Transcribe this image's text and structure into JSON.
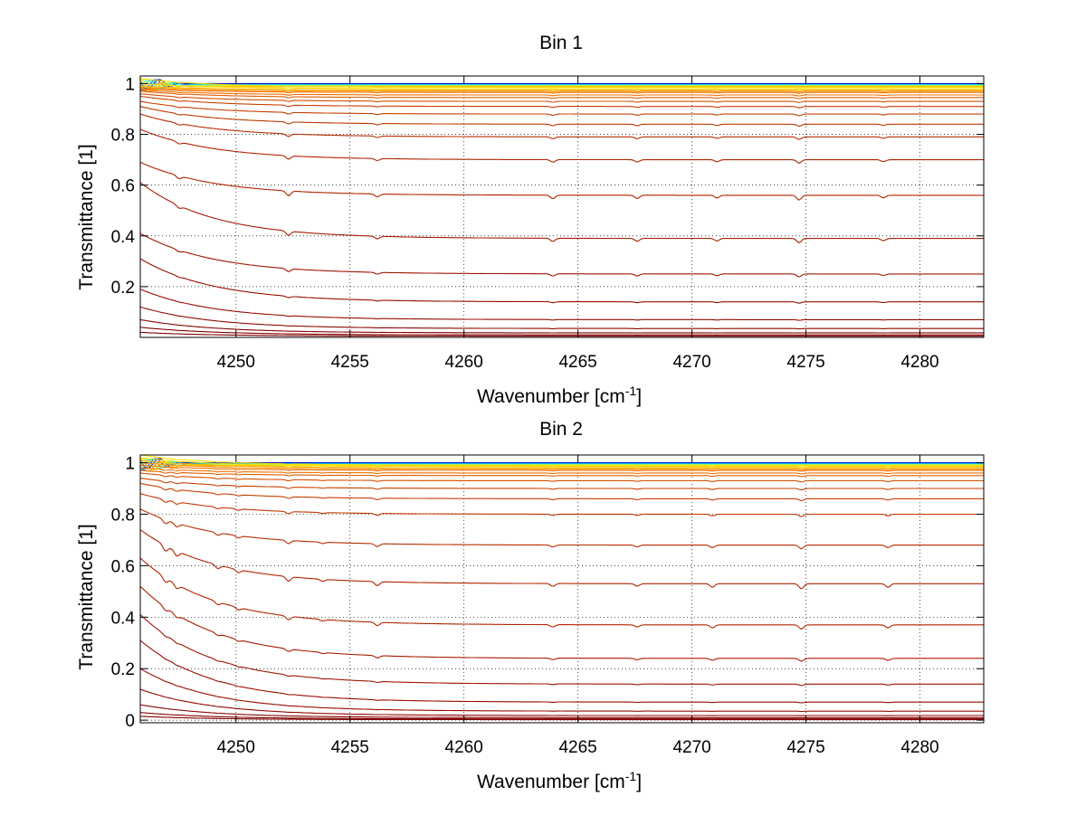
{
  "chart_data": [
    {
      "type": "line",
      "title": "Bin 1",
      "xlabel": "Wavenumber [cm",
      "xlabel_sup": "-1",
      "xlabel_end": "]",
      "ylabel": "Transmittance [1]",
      "xlim": [
        4245.8,
        4282.8
      ],
      "ylim": [
        0,
        1.03
      ],
      "xticks": [
        4250,
        4255,
        4260,
        4265,
        4270,
        4275,
        4280
      ],
      "yticks": [
        0.2,
        0.4,
        0.6,
        0.8,
        1
      ],
      "ytick_labels": [
        "0.2",
        "0.4",
        "0.6",
        "0.8",
        "1"
      ],
      "grid": true,
      "series_profile": "decaying-transmittance family",
      "absorption_lines": [
        {
          "x": 4247.5,
          "depth": 0.6
        },
        {
          "x": 4252.3,
          "depth": 1.0
        },
        {
          "x": 4256.2,
          "depth": 0.6
        },
        {
          "x": 4263.9,
          "depth": 0.75
        },
        {
          "x": 4267.6,
          "depth": 0.7
        },
        {
          "x": 4271.1,
          "depth": 0.6
        },
        {
          "x": 4274.7,
          "depth": 1.0
        },
        {
          "x": 4278.4,
          "depth": 0.55
        }
      ],
      "series_end_values": [
        0.985,
        0.98,
        0.975,
        0.97,
        0.965,
        0.955,
        0.945,
        0.93,
        0.91,
        0.88,
        0.84,
        0.79,
        0.7,
        0.56,
        0.39,
        0.25,
        0.14,
        0.07,
        0.035,
        0.018,
        0.01,
        0.005
      ],
      "series_start_values": [
        1.02,
        1.0,
        0.99,
        0.985,
        0.98,
        0.975,
        0.97,
        0.96,
        0.95,
        0.93,
        0.91,
        0.88,
        0.82,
        0.69,
        0.61,
        0.41,
        0.31,
        0.19,
        0.12,
        0.07,
        0.04,
        0.02
      ],
      "flat_top_series": [
        1.0,
        0.998,
        0.996,
        0.994,
        0.992,
        0.99,
        0.988
      ],
      "palette": [
        "#00008f",
        "#0030ff",
        "#00b0ff",
        "#30ffd0",
        "#a0ff60",
        "#ffe000",
        "#ffb000",
        "#ff9000",
        "#f07000",
        "#e06000",
        "#d45000",
        "#c84000",
        "#c03800",
        "#b82c00",
        "#b02400",
        "#a81c00",
        "#a01400",
        "#980c00",
        "#900800",
        "#880400",
        "#800000",
        "#800000"
      ]
    },
    {
      "type": "line",
      "title": "Bin 2",
      "xlabel": "Wavenumber [cm",
      "xlabel_sup": "-1",
      "xlabel_end": "]",
      "ylabel": "Transmittance [1]",
      "xlim": [
        4245.8,
        4282.8
      ],
      "ylim": [
        -0.01,
        1.03
      ],
      "xticks": [
        4250,
        4255,
        4260,
        4265,
        4270,
        4275,
        4280
      ],
      "yticks": [
        0,
        0.2,
        0.4,
        0.6,
        0.8,
        1
      ],
      "ytick_labels": [
        "0",
        "0.2",
        "0.4",
        "0.6",
        "0.8",
        "1"
      ],
      "grid": true,
      "series_profile": "decaying-transmittance family",
      "absorption_lines": [
        {
          "x": 4246.9,
          "depth": 1.1
        },
        {
          "x": 4247.4,
          "depth": 1.0
        },
        {
          "x": 4249.2,
          "depth": 0.7
        },
        {
          "x": 4250.1,
          "depth": 0.6
        },
        {
          "x": 4252.3,
          "depth": 0.9
        },
        {
          "x": 4253.8,
          "depth": 0.4
        },
        {
          "x": 4256.2,
          "depth": 0.8
        },
        {
          "x": 4263.9,
          "depth": 0.55
        },
        {
          "x": 4267.6,
          "depth": 0.5
        },
        {
          "x": 4270.9,
          "depth": 0.7
        },
        {
          "x": 4274.8,
          "depth": 1.0
        },
        {
          "x": 4278.6,
          "depth": 0.7
        }
      ],
      "series_end_values": [
        0.99,
        0.985,
        0.98,
        0.975,
        0.97,
        0.96,
        0.95,
        0.93,
        0.9,
        0.86,
        0.8,
        0.68,
        0.53,
        0.37,
        0.24,
        0.14,
        0.07,
        0.035,
        0.018,
        0.01,
        0.005,
        0.002
      ],
      "series_start_values": [
        1.03,
        1.02,
        1.01,
        1.0,
        0.99,
        0.98,
        0.97,
        0.96,
        0.94,
        0.92,
        0.88,
        0.82,
        0.74,
        0.63,
        0.52,
        0.41,
        0.31,
        0.2,
        0.12,
        0.06,
        0.03,
        0.015
      ],
      "flat_top_series": [
        1.0,
        0.998,
        0.996,
        0.994,
        0.992,
        0.99,
        0.988
      ],
      "palette": [
        "#00008f",
        "#0030ff",
        "#00b0ff",
        "#30ffd0",
        "#a0ff60",
        "#ffe000",
        "#ffb000",
        "#ff9000",
        "#f07000",
        "#e06000",
        "#d45000",
        "#c84000",
        "#c03800",
        "#b82c00",
        "#b02400",
        "#a81c00",
        "#a01400",
        "#980c00",
        "#900800",
        "#880400",
        "#800000",
        "#800000"
      ]
    }
  ]
}
